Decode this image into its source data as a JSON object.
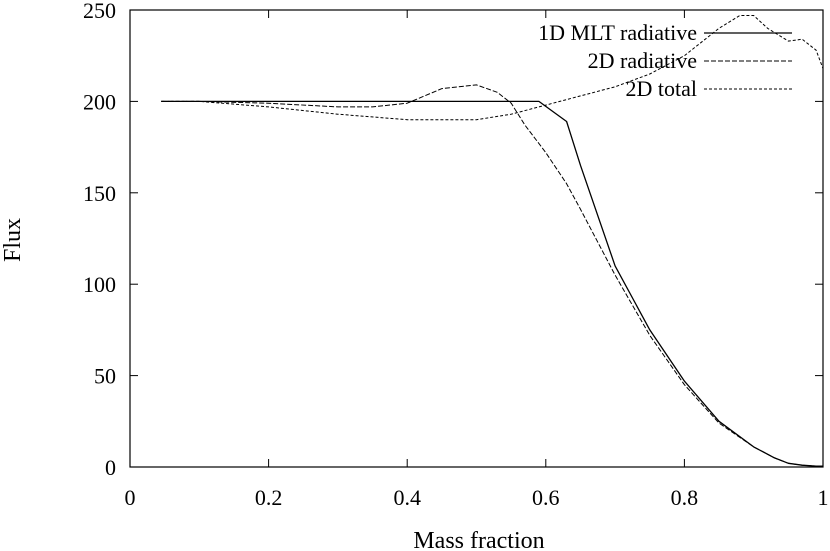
{
  "chart_data": {
    "type": "line",
    "title": "",
    "xlabel": "Mass fraction",
    "ylabel": "Flux",
    "xlim": [
      0,
      1
    ],
    "ylim": [
      0,
      250
    ],
    "xticks": [
      0,
      0.2,
      0.4,
      0.6,
      0.8,
      1
    ],
    "xtick_labels": [
      "0",
      "0.2",
      "0.4",
      "0.6",
      "0.8",
      "1"
    ],
    "yticks": [
      0,
      50,
      100,
      150,
      200,
      250
    ],
    "ytick_labels": [
      "0",
      "50",
      "100",
      "150",
      "200",
      "250"
    ],
    "grid": false,
    "legend_position": "top-right",
    "series": [
      {
        "name": "1D MLT radiative",
        "style": "solid",
        "x": [
          0.045,
          0.1,
          0.2,
          0.3,
          0.4,
          0.5,
          0.55,
          0.59,
          0.63,
          0.65,
          0.7,
          0.75,
          0.8,
          0.85,
          0.9,
          0.93,
          0.95,
          0.97,
          0.99,
          1.0
        ],
        "y": [
          200,
          200,
          200,
          200,
          200,
          200,
          200,
          200,
          189,
          165,
          110,
          75,
          47,
          25,
          11,
          5,
          2,
          1,
          0.5,
          0.5
        ]
      },
      {
        "name": "2D radiative",
        "style": "dashed",
        "x": [
          0.045,
          0.1,
          0.2,
          0.3,
          0.35,
          0.4,
          0.45,
          0.5,
          0.53,
          0.55,
          0.57,
          0.6,
          0.63,
          0.65,
          0.7,
          0.75,
          0.8,
          0.85,
          0.9,
          0.93,
          0.95,
          0.97,
          0.99,
          1.0
        ],
        "y": [
          200,
          200,
          199,
          197,
          197,
          199,
          207,
          209,
          205,
          199,
          187,
          172,
          155,
          141,
          105,
          72,
          45,
          24,
          11,
          5,
          2,
          1,
          0.5,
          0.5
        ]
      },
      {
        "name": "2D total",
        "style": "dotted",
        "x": [
          0.045,
          0.1,
          0.2,
          0.3,
          0.4,
          0.45,
          0.5,
          0.55,
          0.6,
          0.65,
          0.7,
          0.75,
          0.8,
          0.85,
          0.88,
          0.9,
          0.92,
          0.95,
          0.97,
          0.99,
          1.0
        ],
        "y": [
          200,
          200,
          197,
          193,
          190,
          190,
          190,
          193,
          198,
          203,
          208,
          215,
          225,
          240,
          247,
          247,
          240,
          233,
          234,
          228,
          218
        ]
      }
    ]
  }
}
